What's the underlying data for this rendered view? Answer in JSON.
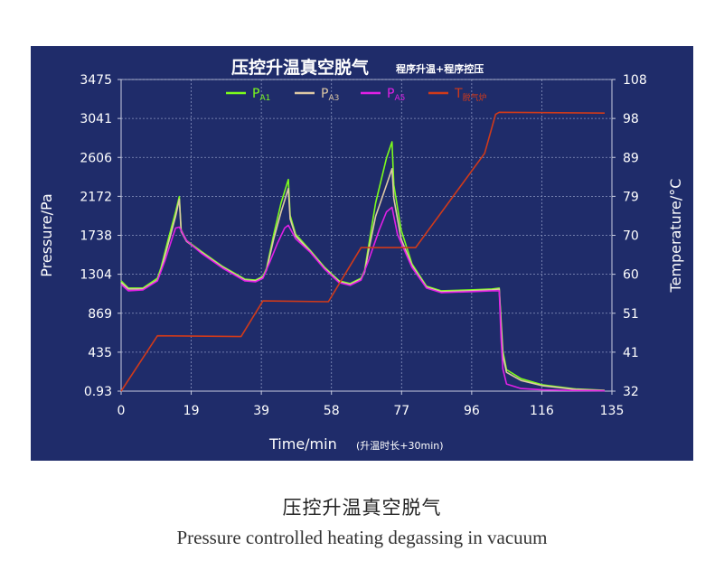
{
  "chart_data": {
    "type": "line",
    "title": "压控升温真空脱气",
    "subtitle": "程序升温+程序控压",
    "xlabel": "Time/min",
    "xlabel_note": "(升温时长+30min)",
    "ylabel": "Pressure/Pa",
    "y2label": "Temperature/°C",
    "xticks": [
      "0",
      "19",
      "39",
      "58",
      "77",
      "96",
      "116",
      "135"
    ],
    "yticks": [
      "0.93",
      "435",
      "869",
      "1304",
      "1738",
      "2172",
      "2606",
      "3041",
      "3475"
    ],
    "y2ticks": [
      "32",
      "41",
      "51",
      "60",
      "70",
      "79",
      "89",
      "98",
      "108"
    ],
    "xlim": [
      0,
      135
    ],
    "ylim": [
      0.93,
      3475
    ],
    "y2lim": [
      32,
      108
    ],
    "grid": true,
    "legend_position": "top",
    "series": [
      {
        "name": "PA1",
        "label_main": "P",
        "label_sub": "A1",
        "axis": "left",
        "color": "#7cfc1c",
        "points": [
          [
            0,
            1230
          ],
          [
            2,
            1150
          ],
          [
            6,
            1150
          ],
          [
            10,
            1260
          ],
          [
            11,
            1380
          ],
          [
            13,
            1700
          ],
          [
            15,
            2000
          ],
          [
            16,
            2170
          ],
          [
            16.5,
            1800
          ],
          [
            18,
            1680
          ],
          [
            22,
            1560
          ],
          [
            28,
            1390
          ],
          [
            34,
            1250
          ],
          [
            37,
            1240
          ],
          [
            39,
            1280
          ],
          [
            40,
            1370
          ],
          [
            42,
            1750
          ],
          [
            44,
            2100
          ],
          [
            46,
            2360
          ],
          [
            46.5,
            1960
          ],
          [
            48,
            1750
          ],
          [
            52,
            1570
          ],
          [
            56,
            1380
          ],
          [
            60,
            1230
          ],
          [
            63,
            1200
          ],
          [
            66,
            1260
          ],
          [
            67,
            1350
          ],
          [
            68,
            1600
          ],
          [
            70,
            2100
          ],
          [
            73,
            2600
          ],
          [
            74.5,
            2780
          ],
          [
            75,
            2300
          ],
          [
            77,
            1800
          ],
          [
            80,
            1420
          ],
          [
            84,
            1170
          ],
          [
            88,
            1120
          ],
          [
            96,
            1130
          ],
          [
            102,
            1140
          ],
          [
            104,
            1150
          ],
          [
            104.5,
            800
          ],
          [
            105,
            450
          ],
          [
            106,
            240
          ],
          [
            110,
            140
          ],
          [
            116,
            70
          ],
          [
            125,
            25
          ],
          [
            133,
            10
          ]
        ]
      },
      {
        "name": "PA3",
        "label_main": "P",
        "label_sub": "A3",
        "axis": "left",
        "color": "#ddc8a4",
        "points": [
          [
            0,
            1210
          ],
          [
            2,
            1140
          ],
          [
            6,
            1140
          ],
          [
            10,
            1240
          ],
          [
            11,
            1350
          ],
          [
            13,
            1650
          ],
          [
            15,
            1950
          ],
          [
            16,
            2140
          ],
          [
            16.5,
            1780
          ],
          [
            18,
            1670
          ],
          [
            22,
            1550
          ],
          [
            28,
            1380
          ],
          [
            34,
            1240
          ],
          [
            37,
            1230
          ],
          [
            39,
            1270
          ],
          [
            40,
            1350
          ],
          [
            42,
            1700
          ],
          [
            44,
            2000
          ],
          [
            46,
            2260
          ],
          [
            46.5,
            1920
          ],
          [
            48,
            1730
          ],
          [
            52,
            1560
          ],
          [
            56,
            1370
          ],
          [
            60,
            1220
          ],
          [
            63,
            1190
          ],
          [
            66,
            1250
          ],
          [
            67,
            1330
          ],
          [
            68,
            1550
          ],
          [
            70,
            1950
          ],
          [
            73,
            2300
          ],
          [
            74.5,
            2480
          ],
          [
            75,
            2150
          ],
          [
            77,
            1700
          ],
          [
            80,
            1400
          ],
          [
            84,
            1160
          ],
          [
            88,
            1110
          ],
          [
            96,
            1120
          ],
          [
            102,
            1130
          ],
          [
            104,
            1140
          ],
          [
            104.5,
            750
          ],
          [
            105,
            400
          ],
          [
            106,
            210
          ],
          [
            110,
            120
          ],
          [
            116,
            60
          ],
          [
            125,
            20
          ],
          [
            133,
            8
          ]
        ]
      },
      {
        "name": "PA5",
        "label_main": "P",
        "label_sub": "A5",
        "axis": "left",
        "color": "#e020e6",
        "points": [
          [
            0,
            1190
          ],
          [
            2,
            1120
          ],
          [
            6,
            1130
          ],
          [
            10,
            1230
          ],
          [
            12,
            1450
          ],
          [
            14,
            1700
          ],
          [
            15,
            1820
          ],
          [
            16,
            1830
          ],
          [
            18,
            1680
          ],
          [
            22,
            1540
          ],
          [
            28,
            1370
          ],
          [
            34,
            1230
          ],
          [
            37,
            1220
          ],
          [
            39,
            1260
          ],
          [
            41,
            1450
          ],
          [
            43,
            1650
          ],
          [
            45,
            1820
          ],
          [
            46,
            1850
          ],
          [
            48,
            1700
          ],
          [
            52,
            1550
          ],
          [
            56,
            1360
          ],
          [
            60,
            1210
          ],
          [
            63,
            1180
          ],
          [
            66,
            1240
          ],
          [
            68,
            1450
          ],
          [
            71,
            1800
          ],
          [
            73,
            2000
          ],
          [
            74.5,
            2050
          ],
          [
            76,
            1750
          ],
          [
            80,
            1380
          ],
          [
            84,
            1150
          ],
          [
            88,
            1100
          ],
          [
            96,
            1110
          ],
          [
            102,
            1120
          ],
          [
            104,
            1120
          ],
          [
            104.5,
            600
          ],
          [
            105,
            250
          ],
          [
            106,
            80
          ],
          [
            110,
            30
          ],
          [
            116,
            15
          ],
          [
            125,
            8
          ],
          [
            133,
            5
          ]
        ]
      },
      {
        "name": "T脱气炉",
        "label_main": "T",
        "label_sub": "脱气炉",
        "axis": "right",
        "color": "#d03a1a",
        "points": [
          [
            0,
            32
          ],
          [
            10,
            45.5
          ],
          [
            33,
            45.3
          ],
          [
            39,
            54
          ],
          [
            57,
            53.8
          ],
          [
            66,
            67
          ],
          [
            81,
            67
          ],
          [
            100,
            90
          ],
          [
            103,
            99.5
          ],
          [
            104,
            100
          ],
          [
            133,
            99.8
          ]
        ]
      }
    ]
  },
  "caption": {
    "cn": "压控升温真空脱气",
    "en": "Pressure controlled heating degassing in vacuum"
  }
}
